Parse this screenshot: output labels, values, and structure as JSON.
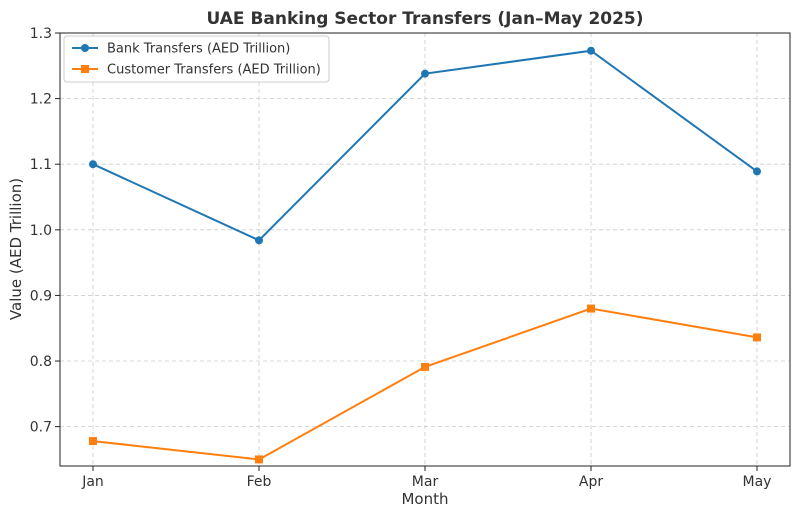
{
  "chart_data": {
    "type": "line",
    "title": "UAE Banking Sector Transfers (Jan–May 2025)",
    "xlabel": "Month",
    "ylabel": "Value (AED Trillion)",
    "categories": [
      "Jan",
      "Feb",
      "Mar",
      "Apr",
      "May"
    ],
    "ylim": [
      0.64,
      1.3
    ],
    "yticks": [
      0.7,
      0.8,
      0.9,
      1.0,
      1.1,
      1.2,
      1.3
    ],
    "grid": true,
    "legend_position": "top-left",
    "series": [
      {
        "name": "Bank Transfers (AED Trillion)",
        "values": [
          1.1,
          0.984,
          1.238,
          1.273,
          1.089
        ],
        "color": "#1f77b4",
        "marker": "circle"
      },
      {
        "name": "Customer Transfers (AED Trillion)",
        "values": [
          0.678,
          0.65,
          0.791,
          0.88,
          0.836
        ],
        "color": "#ff7f0e",
        "marker": "square"
      }
    ]
  }
}
